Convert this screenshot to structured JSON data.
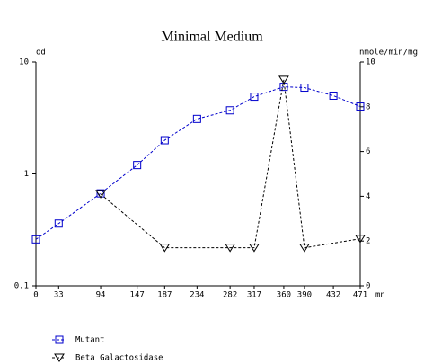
{
  "chart_data": {
    "type": "line",
    "title": "Minimal Medium",
    "y_label": "od",
    "y2_label": "nmole/min/mg",
    "x_label": "mn",
    "x": [
      0,
      33,
      94,
      147,
      187,
      234,
      282,
      317,
      360,
      390,
      432,
      471
    ],
    "xlim": [
      0,
      471
    ],
    "xticks": [
      0,
      33,
      94,
      147,
      187,
      234,
      282,
      317,
      360,
      390,
      432,
      471
    ],
    "ylim": [
      0.1,
      10
    ],
    "yticks": [
      0.1,
      1,
      10
    ],
    "y_scale": "log",
    "y2lim": [
      0,
      10
    ],
    "y2ticks": [
      0,
      2,
      4,
      6,
      8,
      10
    ],
    "series": [
      {
        "name": "Mutant",
        "color": "#0000cc",
        "marker": "square",
        "values": [
          0.26,
          0.36,
          0.67,
          1.2,
          2.0,
          3.1,
          3.7,
          4.9,
          6.0,
          5.9,
          5.0,
          4.0
        ]
      },
      {
        "name": "Beta Galactosidase",
        "color": "#000000",
        "marker": "triangle-down",
        "axis": "y2",
        "x": [
          94,
          187,
          282,
          317,
          360,
          390,
          471
        ],
        "values": [
          4.1,
          1.7,
          1.7,
          1.7,
          9.2,
          1.7,
          2.1
        ]
      }
    ]
  }
}
